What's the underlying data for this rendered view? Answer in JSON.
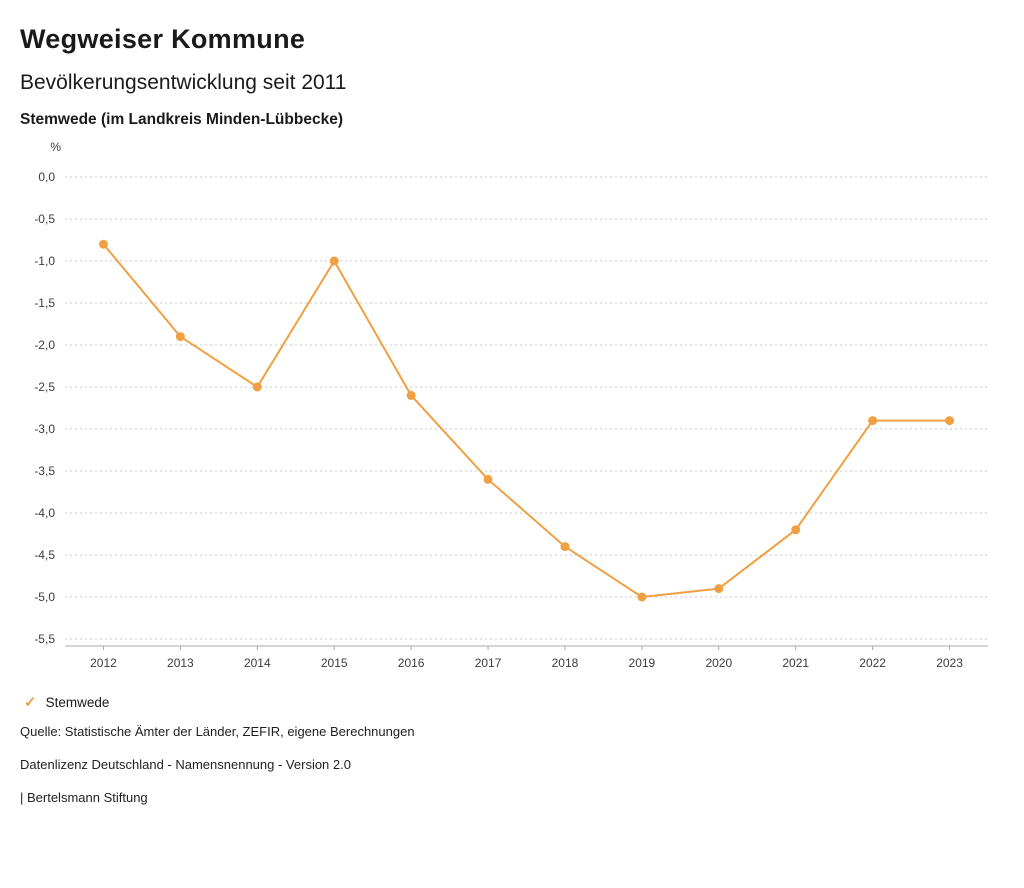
{
  "header": {
    "title": "Wegweiser Kommune",
    "subtitle": "Bevölkerungsentwicklung seit 2011",
    "region": "Stemwede (im Landkreis Minden-Lübbecke)"
  },
  "chart_data": {
    "type": "line",
    "title": "Bevölkerungsentwicklung seit 2011",
    "unit_label": "%",
    "x": [
      "2012",
      "2013",
      "2014",
      "2015",
      "2016",
      "2017",
      "2018",
      "2019",
      "2020",
      "2021",
      "2022",
      "2023"
    ],
    "series": [
      {
        "name": "Stemwede",
        "color": "#f0a042",
        "values": [
          -0.8,
          -1.9,
          -2.5,
          -1.0,
          -2.6,
          -3.6,
          -4.4,
          -5.0,
          -4.9,
          -4.2,
          -2.9,
          -2.9
        ]
      }
    ],
    "ylim": [
      -5.5,
      0.0
    ],
    "ytick_step": 0.5,
    "grid": true,
    "gridline_color": "#c9c9c9",
    "axis_color": "#aaaaaa",
    "tick_label_color": "#3c3c3c",
    "legend_position": "bottom"
  },
  "legend": {
    "items": [
      {
        "label": "Stemwede",
        "color": "#f0a042",
        "checked": true
      }
    ]
  },
  "footer": {
    "source": "Quelle: Statistische Ämter der Länder, ZEFIR, eigene Berechnungen",
    "license": "Datenlizenz Deutschland - Namensnennung - Version 2.0",
    "attribution": "| Bertelsmann Stiftung"
  }
}
